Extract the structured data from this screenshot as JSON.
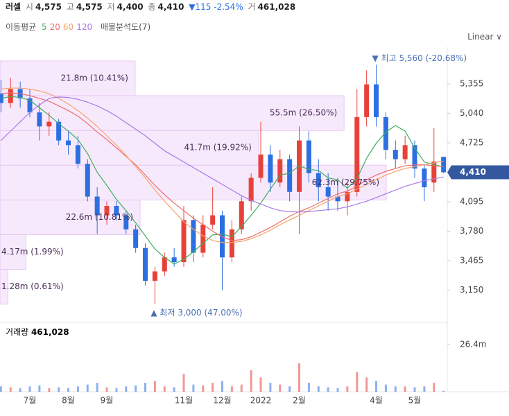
{
  "header": {
    "name": "러셀",
    "quotes": [
      {
        "label": "시",
        "value": "4,575"
      },
      {
        "label": "고",
        "value": "4,575"
      },
      {
        "label": "저",
        "value": "4,400"
      },
      {
        "label": "종",
        "value": "4,410"
      }
    ],
    "change": {
      "text": "▼115 -2.54%",
      "color": "#2b6fe0"
    },
    "volume": {
      "label": "거",
      "value": "461,028"
    }
  },
  "chart_data": [
    {
      "type": "candlestick",
      "legend_title": "이동평균",
      "scale": "Linear",
      "up_color": "#e8413a",
      "down_color": "#2b6fe0",
      "categories": [
        null,
        null,
        null,
        "7월",
        null,
        null,
        null,
        "8월",
        null,
        null,
        null,
        "9월",
        null,
        null,
        null,
        null,
        null,
        null,
        null,
        "11월",
        null,
        null,
        null,
        "12월",
        null,
        null,
        null,
        "2022",
        null,
        null,
        null,
        "2월",
        null,
        null,
        null,
        null,
        null,
        null,
        null,
        "4월",
        null,
        null,
        null,
        "5월",
        null,
        null,
        null
      ],
      "open": [
        5250,
        5150,
        5300,
        5200,
        5050,
        4900,
        4950,
        4750,
        4700,
        4500,
        4150,
        3950,
        4050,
        3950,
        3800,
        3600,
        3250,
        3350,
        3500,
        3450,
        3900,
        3550,
        3850,
        3950,
        3500,
        3800,
        4100,
        4350,
        4600,
        4300,
        4550,
        4200,
        4750,
        4400,
        4250,
        4150,
        4100,
        4200,
        5000,
        5350,
        5000,
        4650,
        4550,
        4700,
        4450,
        4300,
        4575
      ],
      "high": [
        5400,
        5420,
        5380,
        5300,
        5150,
        5050,
        4980,
        4850,
        4800,
        4550,
        4250,
        4100,
        4100,
        4000,
        3850,
        3650,
        3400,
        3550,
        3600,
        4050,
        3950,
        3950,
        4250,
        4000,
        3900,
        4150,
        4400,
        4950,
        4700,
        4650,
        4600,
        4900,
        4850,
        4550,
        4400,
        4350,
        4300,
        5300,
        5500,
        5560,
        5050,
        4750,
        4800,
        4750,
        4500,
        4880,
        4575
      ],
      "low": [
        5050,
        5100,
        5100,
        5000,
        4750,
        4800,
        4700,
        4600,
        4450,
        4100,
        3750,
        3850,
        3900,
        3750,
        3550,
        3200,
        3000,
        3300,
        3400,
        3400,
        3450,
        3500,
        3800,
        3150,
        3450,
        3750,
        4000,
        4300,
        4200,
        4250,
        4100,
        3750,
        4300,
        4100,
        4000,
        4000,
        3950,
        4150,
        4900,
        4900,
        4550,
        4450,
        4500,
        4350,
        4100,
        4200,
        4400
      ],
      "close": [
        5150,
        5300,
        5200,
        5050,
        4900,
        4950,
        4750,
        4700,
        4500,
        4150,
        3950,
        4050,
        3950,
        3800,
        3600,
        3250,
        3350,
        3500,
        3450,
        3900,
        3550,
        3850,
        3950,
        3500,
        3800,
        4100,
        4350,
        4600,
        4300,
        4550,
        4200,
        4750,
        4400,
        4250,
        4150,
        4100,
        4200,
        5000,
        5350,
        5000,
        4650,
        4550,
        4700,
        4450,
        4250,
        4525,
        4410
      ],
      "series": [
        {
          "name": "5",
          "color": "#3cae5c",
          "values": [
            5200,
            5220,
            5210,
            5180,
            5100,
            5020,
            4930,
            4850,
            4760,
            4610,
            4410,
            4270,
            4120,
            4000,
            3870,
            3730,
            3590,
            3500,
            3430,
            3480,
            3560,
            3650,
            3740,
            3750,
            3720,
            3830,
            3950,
            4080,
            4230,
            4380,
            4400,
            4480,
            4440,
            4430,
            4350,
            4330,
            4240,
            4340,
            4560,
            4720,
            4840,
            4910,
            4850,
            4670,
            4520,
            4490,
            4470
          ]
        },
        {
          "name": "20",
          "color": "#ef6b6b",
          "values": [
            5250,
            5260,
            5250,
            5230,
            5200,
            5170,
            5120,
            5070,
            5010,
            4930,
            4840,
            4760,
            4670,
            4580,
            4490,
            4380,
            4270,
            4170,
            4080,
            4000,
            3920,
            3850,
            3780,
            3720,
            3680,
            3690,
            3720,
            3770,
            3820,
            3880,
            3940,
            3990,
            4030,
            4080,
            4130,
            4180,
            4210,
            4260,
            4330,
            4380,
            4420,
            4450,
            4480,
            4490,
            4490,
            4480,
            4470
          ]
        },
        {
          "name": "60",
          "color": "#f4a46a",
          "values": [
            5300,
            5310,
            5310,
            5300,
            5280,
            5250,
            5200,
            5140,
            5070,
            4990,
            4900,
            4800,
            4700,
            4590,
            4470,
            4350,
            4220,
            4100,
            3990,
            3880,
            3800,
            3730,
            3680,
            3660,
            3660,
            3670,
            3700,
            3740,
            3790,
            3850,
            3900,
            3950,
            4000,
            4050,
            4100,
            4150,
            4180,
            4230,
            4280,
            4330,
            4380,
            4420,
            4450,
            4470,
            4490,
            4510,
            4530
          ]
        },
        {
          "name": "120",
          "color": "#a779e6",
          "values": [
            4750,
            4850,
            4950,
            5050,
            5130,
            5200,
            5215,
            5210,
            5190,
            5160,
            5120,
            5070,
            5010,
            4940,
            4870,
            4800,
            4720,
            4640,
            4580,
            4520,
            4460,
            4400,
            4340,
            4280,
            4220,
            4160,
            4110,
            4070,
            4030,
            4000,
            3990,
            3985,
            3990,
            4000,
            4010,
            4020,
            4040,
            4070,
            4100,
            4140,
            4180,
            4220,
            4260,
            4290,
            4320,
            4340,
            4360
          ]
        }
      ],
      "volume_profile": {
        "title": "매물분석도(7)",
        "fill": "#f7e9fc",
        "stroke": "#e6c8f5",
        "bins": [
          3000,
          3371,
          3743,
          4114,
          4486,
          4857,
          5229,
          5600
        ],
        "values": [
          1.28,
          4.17,
          22.6,
          62.3,
          41.7,
          55.5,
          21.8
        ],
        "value_labels": [
          "1.28m (0.61%)",
          "4.17m (1.99%)",
          "22.6m (10.81%)",
          "62.3m (29.75%)",
          "41.7m (19.92%)",
          "55.5m (26.50%)",
          "21.8m (10.41%)"
        ]
      },
      "high_label": "▼ 최고 5,560 (-20.68%)",
      "low_label": "▲ 최저 3,000 (47.00%)",
      "last_price": {
        "value": 4410,
        "label": "4,410"
      },
      "last_price_color": "#34589f",
      "ylim": [
        2842,
        5696
      ],
      "yticks": [
        {
          "value": 3150,
          "label": "3,150"
        },
        {
          "value": 3465,
          "label": "3,465"
        },
        {
          "value": 3780,
          "label": "3,780"
        },
        {
          "value": 4095,
          "label": "4,095"
        },
        {
          "value": 4725,
          "label": "4,725"
        },
        {
          "value": 5040,
          "label": "5,040"
        },
        {
          "value": 5355,
          "label": "5,355"
        }
      ]
    },
    {
      "type": "bar",
      "title": "거래량",
      "value_label": "461,028",
      "values": [
        3,
        2.5,
        2,
        3,
        3.5,
        2,
        2.5,
        2,
        3,
        4,
        5,
        2.5,
        2,
        3,
        3.5,
        5,
        6,
        3,
        2.5,
        10,
        4,
        3.5,
        5,
        6,
        3,
        4,
        12,
        8,
        5,
        4,
        3,
        16,
        5,
        3,
        2.5,
        2,
        3,
        11,
        8,
        6,
        4,
        3,
        3,
        2.5,
        3,
        5,
        0.461
      ],
      "ylim": [
        0,
        38
      ],
      "yticks": [
        {
          "value": 26.4,
          "label": "26.4m"
        }
      ]
    }
  ]
}
